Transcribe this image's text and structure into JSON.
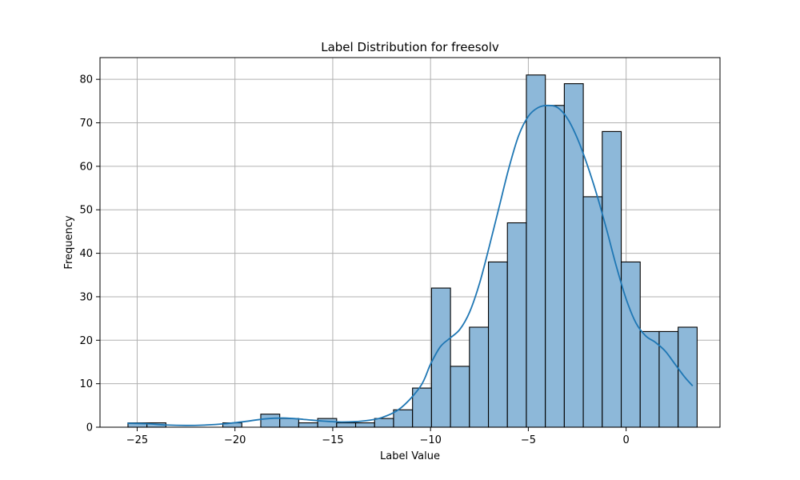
{
  "chart_data": {
    "type": "bar",
    "title": "Label Distribution for freesolv",
    "xlabel": "Label Value",
    "ylabel": "Frequency",
    "xlim": [
      -26.9,
      4.8
    ],
    "ylim": [
      0,
      85
    ],
    "grid": true,
    "x_ticks": [
      -25,
      -20,
      -15,
      -10,
      -5,
      0
    ],
    "y_ticks": [
      0,
      10,
      20,
      30,
      40,
      50,
      60,
      70,
      80
    ],
    "bin_width": 0.97,
    "bins": [
      {
        "x0": -25.47,
        "value": 1
      },
      {
        "x0": -24.5,
        "value": 1
      },
      {
        "x0": -23.53,
        "value": 0
      },
      {
        "x0": -22.56,
        "value": 0
      },
      {
        "x0": -21.59,
        "value": 0
      },
      {
        "x0": -20.62,
        "value": 1
      },
      {
        "x0": -19.65,
        "value": 0
      },
      {
        "x0": -18.68,
        "value": 3
      },
      {
        "x0": -17.71,
        "value": 2
      },
      {
        "x0": -16.74,
        "value": 1
      },
      {
        "x0": -15.77,
        "value": 2
      },
      {
        "x0": -14.8,
        "value": 1
      },
      {
        "x0": -13.83,
        "value": 1
      },
      {
        "x0": -12.86,
        "value": 2
      },
      {
        "x0": -11.89,
        "value": 4
      },
      {
        "x0": -10.92,
        "value": 9
      },
      {
        "x0": -9.95,
        "value": 32
      },
      {
        "x0": -8.98,
        "value": 14
      },
      {
        "x0": -8.01,
        "value": 23
      },
      {
        "x0": -7.04,
        "value": 38
      },
      {
        "x0": -6.07,
        "value": 47
      },
      {
        "x0": -5.1,
        "value": 81
      },
      {
        "x0": -4.13,
        "value": 74
      },
      {
        "x0": -3.16,
        "value": 79
      },
      {
        "x0": -2.19,
        "value": 53
      },
      {
        "x0": -1.22,
        "value": 68
      },
      {
        "x0": -0.25,
        "value": 38
      },
      {
        "x0": 0.72,
        "value": 22
      },
      {
        "x0": 1.69,
        "value": 22
      },
      {
        "x0": 2.66,
        "value": 23
      }
    ],
    "kde": {
      "x": [
        -25.5,
        -24.5,
        -23.5,
        -22.5,
        -21.5,
        -20.5,
        -19.5,
        -18.5,
        -17.5,
        -16.5,
        -15.5,
        -14.5,
        -13.5,
        -12.5,
        -11.5,
        -10.5,
        -10.0,
        -9.5,
        -9.0,
        -8.5,
        -8.0,
        -7.5,
        -7.0,
        -6.5,
        -6.0,
        -5.5,
        -5.0,
        -4.5,
        -4.0,
        -3.5,
        -3.0,
        -2.5,
        -2.0,
        -1.5,
        -1.0,
        -0.5,
        0.0,
        0.5,
        1.0,
        1.5,
        2.0,
        2.5,
        3.0,
        3.4
      ],
      "y": [
        0.9,
        0.8,
        0.5,
        0.4,
        0.5,
        0.8,
        1.3,
        1.9,
        2.1,
        1.8,
        1.4,
        1.2,
        1.4,
        2.2,
        4.5,
        9.5,
        14.5,
        18.5,
        20.5,
        22.5,
        26.5,
        33.0,
        41.5,
        50.5,
        59.5,
        67.0,
        71.5,
        73.5,
        74.0,
        73.5,
        71.0,
        66.5,
        60.5,
        53.5,
        45.5,
        37.0,
        29.5,
        24.0,
        21.0,
        19.5,
        17.5,
        14.5,
        11.5,
        9.5
      ]
    },
    "colors": {
      "bar_fill": "#8db8d9",
      "bar_edge": "#000000",
      "kde_line": "#1f77b4",
      "grid": "#b0b0b0"
    }
  }
}
